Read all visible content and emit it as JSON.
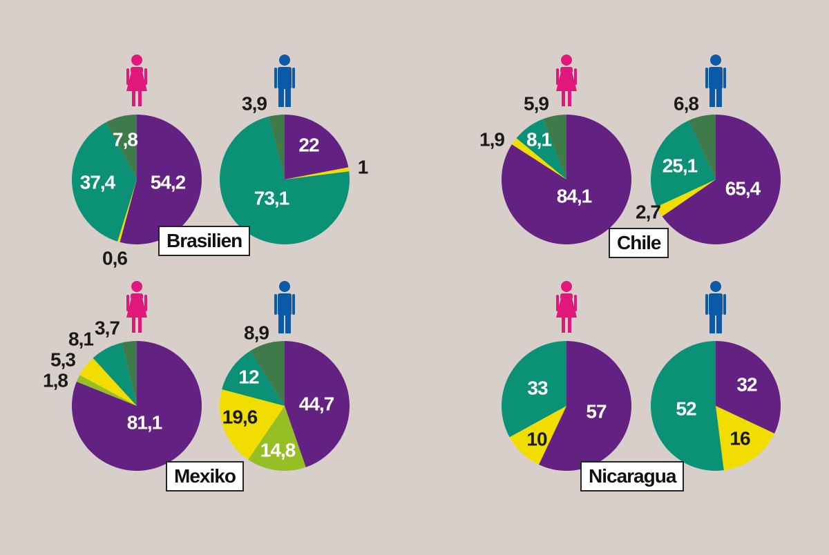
{
  "colors": {
    "background": "#d8cfca",
    "female_icon": "#e0187c",
    "male_icon": "#0a5aa8",
    "slice_colors": [
      "#632282",
      "#f1de00",
      "#95bf24",
      "#0a9176",
      "#3e7a4a"
    ]
  },
  "icons": {
    "female": "female-figure-icon",
    "male": "male-figure-icon"
  },
  "chart_data": [
    {
      "type": "pie",
      "country": "Brasilien",
      "female": [
        {
          "value": 54.2,
          "label": "54,2",
          "color": "#632282"
        },
        {
          "value": 0.6,
          "label": "0,6",
          "color": "#f1de00"
        },
        {
          "value": 37.4,
          "label": "37,4",
          "color": "#0a9176"
        },
        {
          "value": 7.8,
          "label": "7,8",
          "color": "#3e7a4a"
        }
      ],
      "male": [
        {
          "value": 22,
          "label": "22",
          "color": "#632282"
        },
        {
          "value": 1,
          "label": "1",
          "color": "#f1de00"
        },
        {
          "value": 73.1,
          "label": "73,1",
          "color": "#0a9176"
        },
        {
          "value": 3.9,
          "label": "3,9",
          "color": "#3e7a4a"
        }
      ]
    },
    {
      "type": "pie",
      "country": "Chile",
      "female": [
        {
          "value": 84.1,
          "label": "84,1",
          "color": "#632282"
        },
        {
          "value": 1.9,
          "label": "1,9",
          "color": "#f1de00"
        },
        {
          "value": 8.1,
          "label": "8,1",
          "color": "#0a9176"
        },
        {
          "value": 5.9,
          "label": "5,9",
          "color": "#3e7a4a"
        }
      ],
      "male": [
        {
          "value": 65.4,
          "label": "65,4",
          "color": "#632282"
        },
        {
          "value": 2.7,
          "label": "2,7",
          "color": "#f1de00"
        },
        {
          "value": 25.1,
          "label": "25,1",
          "color": "#0a9176"
        },
        {
          "value": 6.8,
          "label": "6,8",
          "color": "#3e7a4a"
        }
      ]
    },
    {
      "type": "pie",
      "country": "Mexiko",
      "female": [
        {
          "value": 81.1,
          "label": "81,1",
          "color": "#632282"
        },
        {
          "value": 1.8,
          "label": "1,8",
          "color": "#95bf24"
        },
        {
          "value": 5.3,
          "label": "5,3",
          "color": "#f1de00"
        },
        {
          "value": 8.1,
          "label": "8,1",
          "color": "#0a9176"
        },
        {
          "value": 3.7,
          "label": "3,7",
          "color": "#3e7a4a"
        }
      ],
      "male": [
        {
          "value": 44.7,
          "label": "44,7",
          "color": "#632282"
        },
        {
          "value": 14.8,
          "label": "14,8",
          "color": "#95bf24"
        },
        {
          "value": 19.6,
          "label": "19,6",
          "color": "#f1de00"
        },
        {
          "value": 12,
          "label": "12",
          "color": "#0a9176"
        },
        {
          "value": 8.9,
          "label": "8,9",
          "color": "#3e7a4a"
        }
      ]
    },
    {
      "type": "pie",
      "country": "Nicaragua",
      "female": [
        {
          "value": 57,
          "label": "57",
          "color": "#632282"
        },
        {
          "value": 10,
          "label": "10",
          "color": "#f1de00"
        },
        {
          "value": 33,
          "label": "33",
          "color": "#0a9176"
        }
      ],
      "male": [
        {
          "value": 32,
          "label": "32",
          "color": "#632282"
        },
        {
          "value": 16,
          "label": "16",
          "color": "#f1de00"
        },
        {
          "value": 52,
          "label": "52",
          "color": "#0a9176"
        }
      ]
    }
  ]
}
